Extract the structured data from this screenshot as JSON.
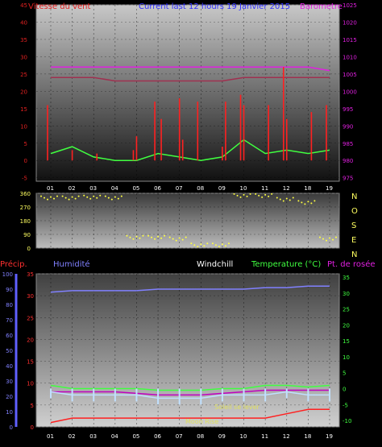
{
  "header": {
    "wind_label": "Vitesse du vent",
    "period_label": "Current last 12 hours 19 Janvier 2015",
    "baro_label": "Barometre"
  },
  "colors": {
    "wind": "#e01010",
    "gust": "#ff2020",
    "baro": "#e020e0",
    "humidity": "#8080ff",
    "temp": "#40ff40",
    "dew": "#c000c0",
    "windchill": "#ffffff",
    "precip": "#ff2020",
    "wind_dir": "#ffff40"
  },
  "lower_header": {
    "precip_label": "Précip.",
    "humidity_label": "Humidité",
    "windchill_label": "Windchill",
    "temp_label": "Temperature (°C)",
    "dew_label": "Pt. de rosée"
  },
  "annotations": {
    "sunrise": "Soleil se lever",
    "moonrise": "Moon Rise"
  },
  "compass": [
    "N",
    "O",
    "S",
    "E",
    "N"
  ],
  "x_ticks": [
    "01",
    "02",
    "03",
    "04",
    "05",
    "06",
    "07",
    "08",
    "09",
    "10",
    "11",
    "12",
    "18",
    "19"
  ],
  "chart_data": [
    {
      "type": "line",
      "name": "wind_barometer",
      "title": "Current last 12 hours 19 Janvier 2015",
      "ylabel_left": "Vitesse du vent",
      "ylabel_right": "Barometre",
      "y_left_ticks": [
        -5,
        0,
        5,
        10,
        15,
        20,
        25,
        30,
        35,
        40,
        45
      ],
      "y_right_ticks": [
        975,
        980,
        985,
        990,
        995,
        1000,
        1005,
        1010,
        1015,
        1020,
        1025
      ],
      "ylim_left": [
        -6,
        45
      ],
      "ylim_right": [
        974,
        1025
      ],
      "x": [
        "01",
        "02",
        "03",
        "04",
        "05",
        "06",
        "07",
        "08",
        "09",
        "10",
        "11",
        "12",
        "18",
        "19"
      ],
      "series": [
        {
          "name": "Barometre",
          "axis": "right",
          "values": [
            1007,
            1007,
            1007,
            1007,
            1007,
            1007,
            1007,
            1007,
            1007,
            1007,
            1007,
            1007,
            1007,
            1006
          ]
        },
        {
          "name": "Gust",
          "axis": "right",
          "values": [
            1004,
            1004,
            1004,
            1003,
            1003,
            1003,
            1003,
            1003,
            1003,
            1004,
            1004,
            1004,
            1004,
            1004
          ]
        },
        {
          "name": "Vitesse du vent",
          "axis": "left",
          "values": [
            2,
            4,
            1,
            0,
            0,
            2,
            1,
            0,
            1,
            6,
            2,
            3,
            2,
            3
          ]
        }
      ],
      "wind_spikes": [
        [
          "01",
          16
        ],
        [
          "02",
          3
        ],
        [
          "03",
          2
        ],
        [
          "05",
          3
        ],
        [
          "05",
          7
        ],
        [
          "06",
          12
        ],
        [
          "06",
          17
        ],
        [
          "07",
          18
        ],
        [
          "07",
          6
        ],
        [
          "08",
          17
        ],
        [
          "09",
          4
        ],
        [
          "09",
          17
        ],
        [
          "10",
          19
        ],
        [
          "10",
          16
        ],
        [
          "11",
          16
        ],
        [
          "12",
          27
        ],
        [
          "12",
          12
        ],
        [
          "18",
          14
        ],
        [
          "19",
          16
        ]
      ]
    },
    {
      "type": "scatter",
      "name": "wind_direction",
      "y_ticks": [
        0,
        90,
        180,
        270,
        360
      ],
      "ylim": [
        0,
        360
      ],
      "x": [
        "01",
        "02",
        "03",
        "04",
        "05",
        "06",
        "07",
        "08",
        "09",
        "10",
        "11",
        "12",
        "18",
        "19"
      ],
      "series": [
        {
          "name": "direction",
          "values": [
            330,
            330,
            335,
            330,
            70,
            70,
            60,
            20,
            20,
            345,
            345,
            320,
            300,
            60
          ]
        }
      ]
    },
    {
      "type": "line",
      "name": "temp_humidity_precip",
      "ylabel_left": "Humidité",
      "ylabel_right": "Temperature (°C)",
      "y_left_ticks": [
        0,
        5,
        10,
        15,
        20,
        25,
        30,
        35
      ],
      "y_right_ticks": [
        -10,
        -5,
        0,
        5,
        10,
        15,
        20,
        25,
        30,
        35
      ],
      "precip_ticks": [
        0,
        10,
        20,
        30,
        40,
        50,
        60,
        70,
        80,
        90,
        100
      ],
      "ylim_left": [
        0,
        35
      ],
      "ylim_right": [
        -12,
        36
      ],
      "x": [
        "01",
        "02",
        "03",
        "04",
        "05",
        "06",
        "07",
        "08",
        "09",
        "10",
        "11",
        "12",
        "18",
        "19"
      ],
      "series": [
        {
          "name": "Humidité",
          "axis": "precip",
          "values": [
            88,
            89,
            89,
            89,
            89,
            90,
            90,
            90,
            90,
            90,
            91,
            91,
            92,
            92
          ]
        },
        {
          "name": "Temperature (°C)",
          "axis": "right",
          "values": [
            1,
            0,
            0,
            0,
            0,
            -0.5,
            -0.5,
            -0.5,
            0,
            0,
            1,
            1,
            0.5,
            1
          ]
        },
        {
          "name": "Pt. de rosée",
          "axis": "right",
          "values": [
            -1,
            -1,
            -1,
            -1,
            -1.5,
            -2,
            -2,
            -2,
            -1.5,
            -1,
            -0.5,
            -0.5,
            -0.5,
            -0.5
          ]
        },
        {
          "name": "Windchill",
          "axis": "right",
          "values": [
            -1,
            -2,
            -2,
            -2,
            -2,
            -3,
            -3,
            -3,
            -2,
            -2,
            -2,
            -1,
            -2,
            -2
          ]
        },
        {
          "name": "Précip.",
          "axis": "left",
          "values": [
            1,
            2,
            2,
            2,
            2,
            2,
            2,
            2,
            2,
            2,
            2,
            3,
            4,
            4
          ]
        }
      ]
    }
  ]
}
